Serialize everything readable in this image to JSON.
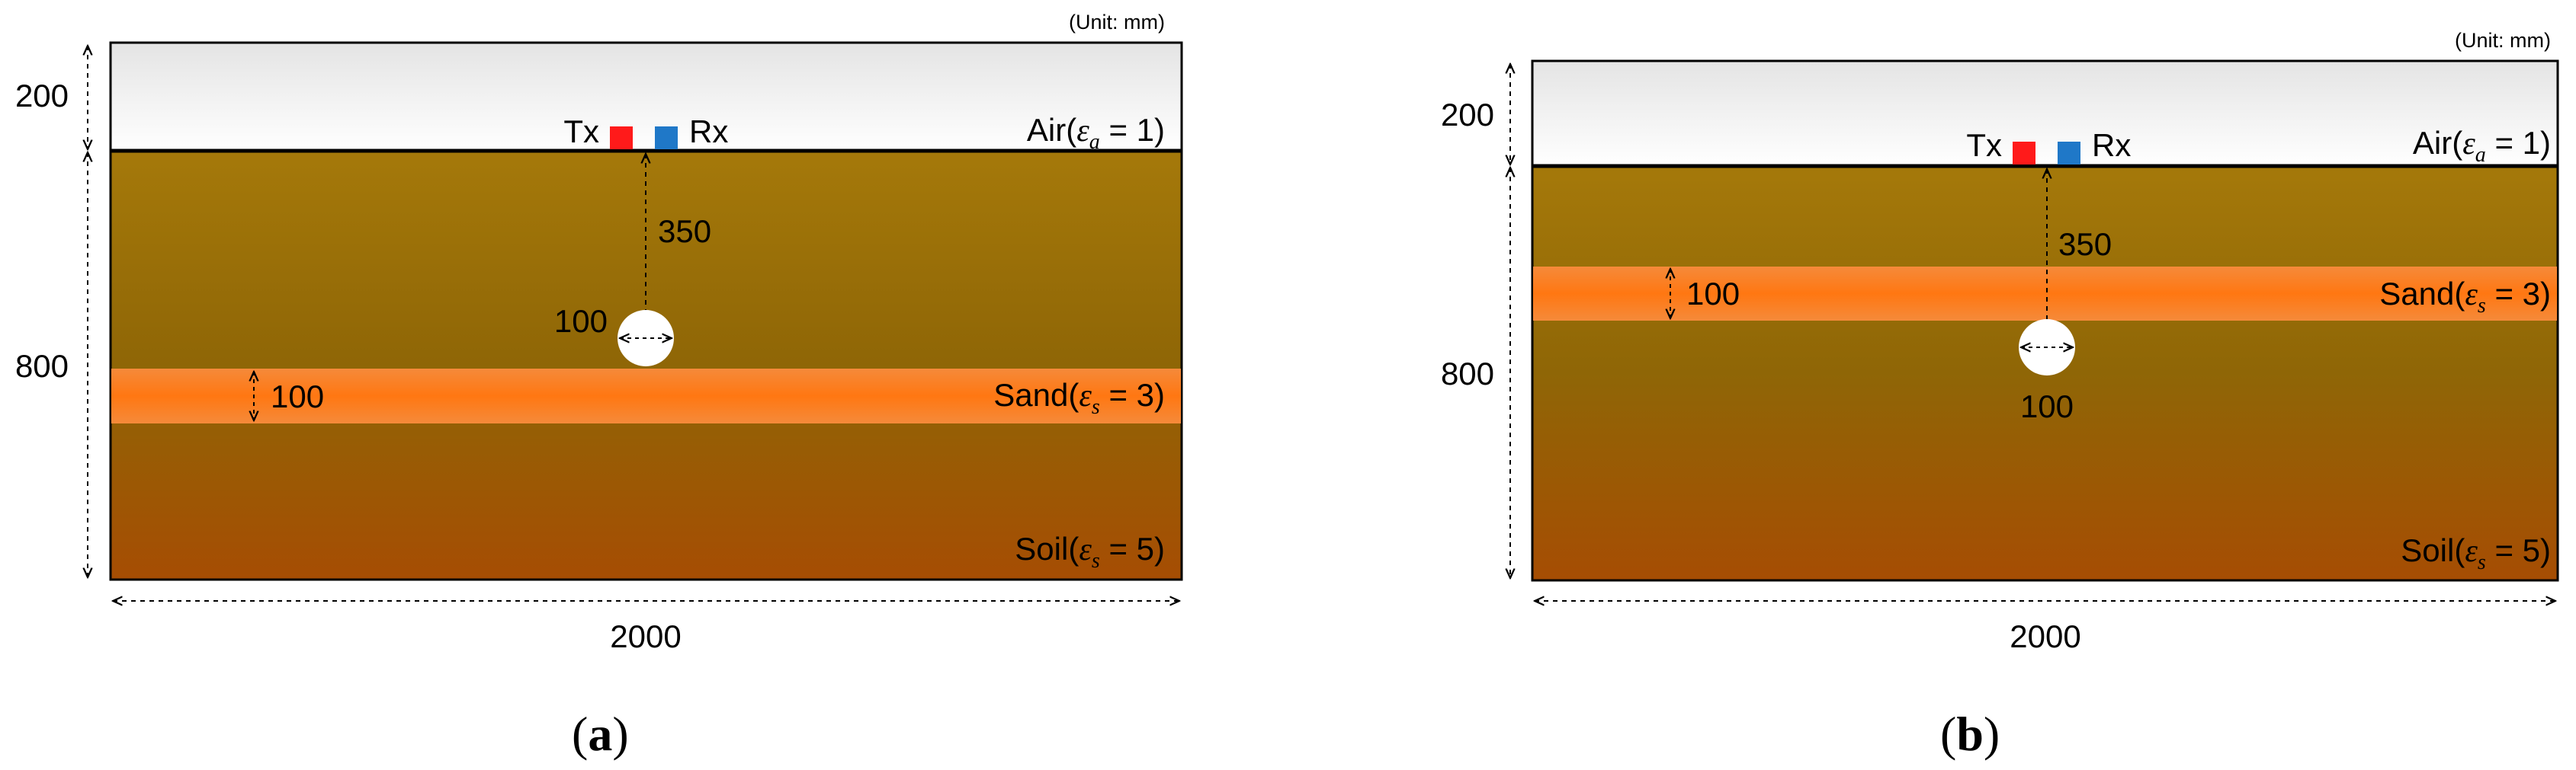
{
  "panels": [
    {
      "unit": "(Unit: mm)",
      "dim_air": "200",
      "dim_soil": "800",
      "dim_width": "2000",
      "tx": "Tx",
      "rx": "Rx",
      "depth": "350",
      "diameter": "100",
      "sand_thickness": "100",
      "air_label": "Air(",
      "air_eq": " = 1)",
      "sand_label": "Sand(",
      "sand_eq": " = 3)",
      "soil_label": "Soil(",
      "soil_eq": " = 5)",
      "eps_a_sub": "a",
      "eps_s_sub": "s",
      "caption_open": "(",
      "caption_letter": "a",
      "caption_close": ")"
    },
    {
      "unit": "(Unit: mm)",
      "dim_air": "200",
      "dim_soil": "800",
      "dim_width": "2000",
      "tx": "Tx",
      "rx": "Rx",
      "depth": "350",
      "diameter": "100",
      "sand_thickness": "100",
      "air_label": "Air(",
      "air_eq": " = 1)",
      "sand_label": "Sand(",
      "sand_eq": " = 3)",
      "soil_label": "Soil(",
      "soil_eq": " = 5)",
      "eps_a_sub": "a",
      "eps_s_sub": "s",
      "caption_open": "(",
      "caption_letter": "b",
      "caption_close": ")"
    }
  ],
  "colors": {
    "air_top": "#e4e4e4",
    "air_bottom": "#ffffff",
    "soil_top": "#a5790a",
    "soil_mid": "#8f6606",
    "soil_bottom": "#a64d03",
    "sand_edge": "#f58a3a",
    "sand_mid": "#ff7712",
    "tx": "#ff1a1a",
    "rx": "#1f78c8"
  }
}
